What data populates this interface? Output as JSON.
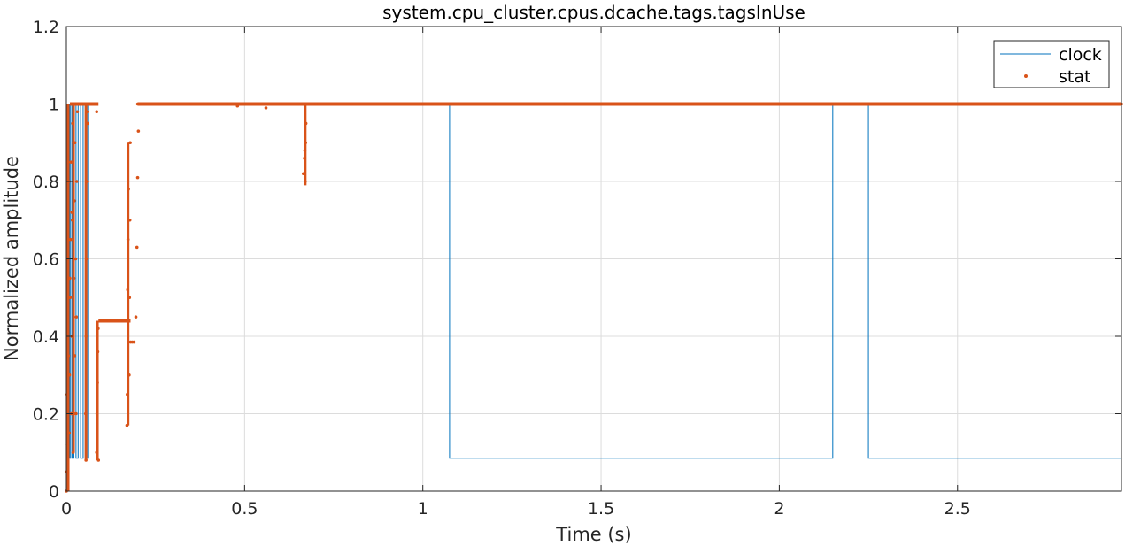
{
  "chart_data": {
    "type": "line",
    "title": "system.cpu_cluster.cpus.dcache.tags.tagsInUse",
    "xlabel": "Time (s)",
    "ylabel": "Normalized amplitude",
    "xlim": [
      0,
      2.96
    ],
    "ylim": [
      0,
      1.2
    ],
    "xticks": [
      0,
      0.5,
      1,
      1.5,
      2,
      2.5
    ],
    "xtick_labels": [
      "0",
      "0.5",
      "1",
      "1.5",
      "2",
      "2.5"
    ],
    "yticks": [
      0,
      0.2,
      0.4,
      0.6,
      0.8,
      1.0,
      1.2
    ],
    "ytick_labels": [
      "0",
      "0.2",
      "0.4",
      "0.6",
      "0.8",
      "1",
      "1.2"
    ],
    "grid": true,
    "legend_position": "top-right",
    "series": [
      {
        "name": "clock",
        "style": "step-line",
        "color": "#0072BD",
        "x": [
          0,
          0.002,
          0.002,
          0.005,
          0.005,
          0.009,
          0.009,
          0.012,
          0.012,
          0.016,
          0.016,
          0.021,
          0.021,
          0.027,
          0.027,
          0.033,
          0.033,
          0.04,
          0.04,
          0.047,
          0.047,
          0.053,
          0.053,
          0.06,
          0.06,
          1.075,
          1.075,
          2.15,
          2.15,
          2.25,
          2.25,
          2.96,
          2.96
        ],
        "y": [
          1,
          1,
          0.085,
          0.085,
          1,
          1,
          0.085,
          0.085,
          1,
          1,
          0.085,
          0.085,
          1,
          1,
          0.085,
          0.085,
          1,
          1,
          0.085,
          0.085,
          1,
          1,
          0.085,
          0.085,
          1,
          1,
          0.085,
          0.085,
          1,
          1,
          0.085,
          0.085,
          1
        ]
      },
      {
        "name": "stat",
        "style": "markers",
        "color": "#D95319",
        "x": [
          0.0,
          0.003,
          0.006,
          0.01,
          0.015,
          0.02,
          0.025,
          0.03,
          0.035,
          0.04,
          0.045,
          0.05,
          0.055,
          0.06,
          0.065,
          0.07,
          0.075,
          0.08,
          0.085,
          0.09,
          0.095,
          0.1,
          0.12,
          0.14,
          0.16,
          0.175,
          0.18,
          0.185,
          0.19,
          0.2,
          0.22,
          0.26,
          0.3,
          0.35,
          0.4,
          0.45,
          0.48,
          0.5,
          0.55,
          0.56,
          0.6,
          0.65,
          0.67,
          0.7,
          0.8,
          0.9,
          1.0,
          1.2,
          1.4,
          1.6,
          1.8,
          2.0,
          2.2,
          2.4,
          2.6,
          2.8,
          2.96
        ],
        "y": [
          0.0,
          0.12,
          0.35,
          0.55,
          0.72,
          0.9,
          1.0,
          1.0,
          1.0,
          1.0,
          1.0,
          1.0,
          0.08,
          0.95,
          1.0,
          1.0,
          1.0,
          1.0,
          0.98,
          0.08,
          0.44,
          0.44,
          0.44,
          0.44,
          0.44,
          0.44,
          0.385,
          0.385,
          0.385,
          1.0,
          1.0,
          1.0,
          1.0,
          1.0,
          1.0,
          1.0,
          0.995,
          1.0,
          1.0,
          0.99,
          1.0,
          1.0,
          0.8,
          1.0,
          1.0,
          1.0,
          1.0,
          1.0,
          1.0,
          1.0,
          1.0,
          1.0,
          1.0,
          1.0,
          1.0,
          1.0,
          1.0
        ],
        "extra_points": {
          "x": [
            0.001,
            0.002,
            0.004,
            0.005,
            0.007,
            0.008,
            0.009,
            0.011,
            0.012,
            0.013,
            0.014,
            0.016,
            0.017,
            0.018,
            0.019,
            0.021,
            0.022,
            0.023,
            0.024,
            0.026,
            0.027,
            0.028,
            0.029,
            0.031,
            0.054,
            0.055,
            0.056,
            0.057,
            0.058,
            0.085,
            0.086,
            0.087,
            0.088,
            0.089,
            0.17,
            0.171,
            0.172,
            0.173,
            0.174,
            0.176,
            0.177,
            0.178,
            0.179,
            0.195,
            0.198,
            0.2,
            0.202,
            0.665,
            0.668,
            0.669,
            0.671,
            0.672
          ],
          "y": [
            0.05,
            0.25,
            0.45,
            0.6,
            0.8,
            0.15,
            0.3,
            0.5,
            0.65,
            0.85,
            0.2,
            0.4,
            0.7,
            0.95,
            0.1,
            0.55,
            0.75,
            0.35,
            0.9,
            0.6,
            0.2,
            0.45,
            0.8,
            0.98,
            0.2,
            0.4,
            0.6,
            0.8,
            0.98,
            0.1,
            0.2,
            0.28,
            0.36,
            0.42,
            0.17,
            0.25,
            0.52,
            0.65,
            0.78,
            0.3,
            0.5,
            0.7,
            0.9,
            0.45,
            0.63,
            0.81,
            0.93,
            0.82,
            0.86,
            0.88,
            0.9,
            0.95
          ]
        }
      }
    ]
  }
}
